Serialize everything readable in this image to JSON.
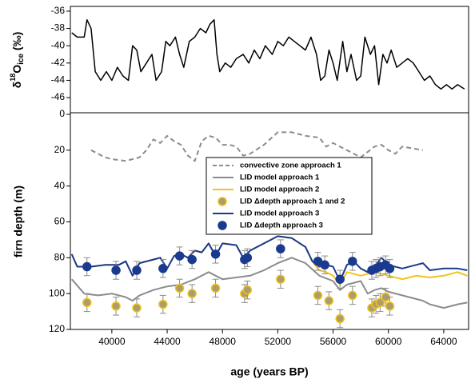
{
  "chart_data": [
    {
      "type": "line",
      "ylabel": {
        "base": "δ",
        "sup": "18",
        "main": "O",
        "sub": "ice",
        "unit": " (‰)"
      },
      "xlim": [
        37000,
        65800
      ],
      "ylim": [
        -47.75,
        -35.45
      ],
      "yticks": [
        -46,
        -44,
        -42,
        -40,
        -38,
        -36
      ],
      "series": [
        {
          "color": "#000000",
          "x": [
            37100,
            37500,
            38000,
            38200,
            38500,
            38800,
            39200,
            39600,
            40000,
            40400,
            40800,
            41200,
            41500,
            41800,
            42100,
            42500,
            42900,
            43200,
            43600,
            43900,
            44200,
            44600,
            44900,
            45200,
            45600,
            46000,
            46400,
            46800,
            47100,
            47400,
            47600,
            47800,
            48200,
            48600,
            49000,
            49500,
            49900,
            50300,
            50700,
            51100,
            51600,
            52000,
            52400,
            52800,
            53200,
            53600,
            54000,
            54400,
            54800,
            55100,
            55400,
            55700,
            56000,
            56300,
            56700,
            57000,
            57300,
            57700,
            58000,
            58300,
            58700,
            59000,
            59300,
            59600,
            59900,
            60200,
            60600,
            61000,
            61400,
            61800,
            62200,
            62600,
            63000,
            63400,
            63800,
            64200,
            64600,
            65000,
            65500
          ],
          "values": [
            -38.5,
            -39,
            -39,
            -37,
            -38,
            -43,
            -44,
            -43,
            -44,
            -42.5,
            -43.5,
            -44,
            -40,
            -40.5,
            -43,
            -42,
            -41,
            -44,
            -43,
            -39.5,
            -40,
            -39,
            -41,
            -42.5,
            -39.5,
            -39,
            -38,
            -38.5,
            -37.5,
            -37,
            -41,
            -43,
            -42,
            -42.5,
            -41.5,
            -41,
            -42,
            -40.5,
            -41.5,
            -40,
            -41,
            -39.5,
            -40,
            -39,
            -39.5,
            -40,
            -40.5,
            -39,
            -41,
            -44,
            -43.5,
            -40.5,
            -42,
            -44,
            -39.5,
            -43,
            -41,
            -44,
            -43.5,
            -39,
            -41,
            -40,
            -44.5,
            -41,
            -42,
            -40.5,
            -42.5,
            -42,
            -41.5,
            -42,
            -43,
            -44,
            -43.5,
            -44.5,
            -45,
            -44.5,
            -45,
            -44.5,
            -45
          ]
        }
      ]
    },
    {
      "type": "line",
      "xlabel": "age (years BP)",
      "ylabel": "firn depth (m)",
      "xlim": [
        37000,
        65800
      ],
      "ylim": [
        0,
        120
      ],
      "y_inverted": true,
      "xticks": [
        40000,
        44000,
        48000,
        52000,
        56000,
        60000,
        64000
      ],
      "yticks": [
        0,
        20,
        40,
        60,
        80,
        100,
        120
      ],
      "legend": "center",
      "series": [
        {
          "name": "convective zone approach 1",
          "style": "dashed",
          "color": "#8c8c8c",
          "x": [
            38500,
            39000,
            39500,
            40000,
            41000,
            42000,
            42500,
            43000,
            43500,
            44000,
            44500,
            45000,
            45500,
            46000,
            46500,
            47000,
            47500,
            48000,
            48500,
            49000,
            49500,
            50000,
            51000,
            52000,
            53000,
            54000,
            55000,
            55500,
            56000,
            57000,
            58000,
            59000,
            59500,
            60000,
            60500,
            61000,
            62500
          ],
          "values": [
            20,
            22,
            24,
            25,
            26,
            24,
            20,
            14,
            16,
            12,
            15,
            17,
            23,
            26,
            15,
            12,
            13,
            17,
            17,
            18,
            23,
            22,
            17,
            10,
            10,
            12,
            13,
            18,
            16,
            20,
            24,
            18,
            17,
            20,
            22,
            18,
            20
          ]
        },
        {
          "name": "LID model approach 1",
          "style": "solid",
          "color": "#8c8c8c",
          "x": [
            37100,
            38000,
            39000,
            40000,
            41000,
            41500,
            42000,
            43000,
            44000,
            45000,
            46000,
            47000,
            48000,
            49000,
            50000,
            51000,
            52000,
            53000,
            54000,
            55000,
            56000,
            56500,
            57000,
            58000,
            58500,
            59000,
            59500,
            60000,
            61000,
            62000,
            62500,
            63000,
            64000,
            65000,
            65700
          ],
          "values": [
            92,
            100,
            101,
            100,
            102,
            104,
            101,
            98,
            96,
            95,
            92,
            88,
            92,
            91,
            90,
            87,
            83,
            80,
            83,
            90,
            93,
            98,
            95,
            93,
            100,
            98,
            97,
            99,
            101,
            103,
            104,
            106,
            108,
            106,
            105
          ]
        },
        {
          "name": "LID model approach 2",
          "style": "solid",
          "color": "#f0c419",
          "x": [
            37100,
            37500,
            38500,
            39500,
            40500,
            41000,
            41500,
            42000,
            43000,
            43500,
            44000,
            44500,
            45000,
            45500,
            46000,
            46500,
            47000,
            47500,
            48000,
            49000,
            49500,
            50000,
            51000,
            52000,
            53000,
            54000,
            54500,
            55000,
            55500,
            56000,
            56500,
            57000,
            58000,
            59000,
            60000,
            61000,
            62000,
            63000,
            64000,
            65000,
            65700
          ],
          "values": [
            78,
            85,
            85,
            84,
            84,
            82,
            90,
            83,
            81,
            80,
            86,
            79,
            78,
            80,
            76,
            77,
            72,
            79,
            72,
            73,
            80,
            76,
            72,
            68,
            69,
            74,
            82,
            87,
            88,
            90,
            95,
            88,
            90,
            88,
            90,
            92,
            90,
            91,
            90,
            88,
            90
          ]
        },
        {
          "name": "LID Δdepth approach 1 and 2",
          "style": "points",
          "color": "#ac9d6e",
          "edgecolor": "#f0c419",
          "error": 5,
          "x": [
            38200,
            40300,
            41800,
            43700,
            44900,
            45800,
            47500,
            49600,
            49800,
            52200,
            54900,
            55700,
            56500,
            57400,
            58800,
            59100,
            59400,
            59800,
            60100
          ],
          "values": [
            105,
            107,
            108,
            106,
            97,
            100,
            97,
            100,
            98,
            92,
            101,
            104,
            114,
            101,
            108,
            106,
            105,
            102,
            107
          ]
        },
        {
          "name": "LID model approach 3",
          "style": "solid",
          "color": "#1a3a8f",
          "x": [
            37100,
            37500,
            38500,
            39500,
            40500,
            41000,
            41500,
            42000,
            43000,
            43500,
            44000,
            44500,
            45000,
            45500,
            46000,
            46500,
            47000,
            47500,
            48000,
            49000,
            49500,
            50000,
            51000,
            52000,
            53000,
            54000,
            54500,
            55000,
            55500,
            56000,
            56500,
            57000,
            57500,
            58000,
            58500,
            59000,
            59500,
            60000,
            61000,
            62000,
            62500,
            63000,
            64000,
            65000,
            65700
          ],
          "values": [
            78,
            85,
            85,
            84,
            84,
            82,
            90,
            83,
            81,
            80,
            86,
            79,
            78,
            80,
            76,
            77,
            72,
            79,
            72,
            73,
            80,
            76,
            72,
            68,
            69,
            74,
            82,
            85,
            84,
            85,
            93,
            84,
            82,
            86,
            88,
            85,
            80,
            84,
            86,
            84,
            83,
            87,
            86,
            86,
            87
          ]
        },
        {
          "name": "LID Δdepth approach 3",
          "style": "points",
          "color": "#1a3a8f",
          "edgecolor": "#1a3a8f",
          "error": 5,
          "x": [
            38200,
            40300,
            41800,
            43700,
            44900,
            45800,
            47500,
            49600,
            49800,
            52200,
            54900,
            55400,
            56500,
            57400,
            58800,
            59100,
            59400,
            59800,
            60100
          ],
          "values": [
            85,
            87,
            87,
            86,
            79,
            81,
            78,
            81,
            80,
            75,
            82,
            84,
            92,
            82,
            87,
            86,
            85,
            84,
            86
          ]
        }
      ]
    }
  ]
}
